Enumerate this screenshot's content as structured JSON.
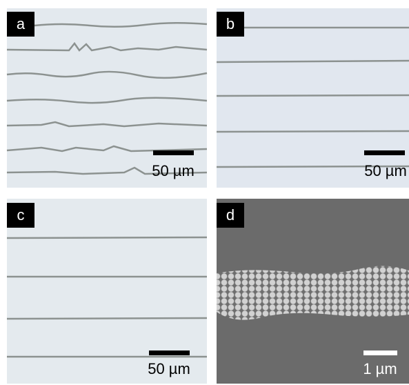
{
  "panels": [
    {
      "label": "a",
      "scale_bar": "50 µm"
    },
    {
      "label": "b",
      "scale_bar": "50 µm"
    },
    {
      "label": "c",
      "scale_bar": "50 µm"
    },
    {
      "label": "d",
      "scale_bar": "1 µm"
    }
  ]
}
